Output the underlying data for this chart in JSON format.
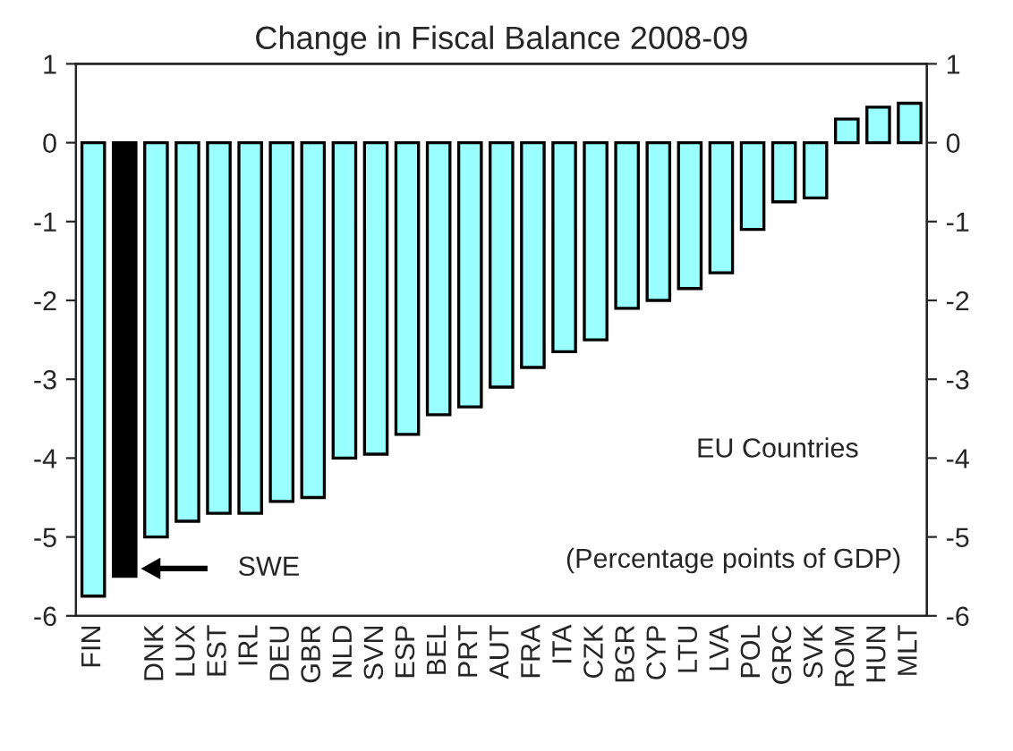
{
  "chart_data": {
    "type": "bar",
    "title": "Change in Fiscal Balance 2008-09",
    "categories": [
      "FIN",
      null,
      "DNK",
      "LUX",
      "EST",
      "IRL",
      "DEU",
      "GBR",
      "NLD",
      "SVN",
      "ESP",
      "BEL",
      "PRT",
      "AUT",
      "FRA",
      "ITA",
      "CZK",
      "BGR",
      "CYP",
      "LTU",
      "LVA",
      "POL",
      "GRC",
      "SVK",
      "ROM",
      "HUN",
      "MLT"
    ],
    "values": [
      -5.75,
      -5.5,
      -5.0,
      -4.8,
      -4.7,
      -4.7,
      -4.55,
      -4.5,
      -4.0,
      -3.95,
      -3.7,
      -3.45,
      -3.35,
      -3.1,
      -2.85,
      -2.65,
      -2.5,
      -2.1,
      -2.0,
      -1.85,
      -1.65,
      -1.1,
      -0.75,
      -0.7,
      0.3,
      0.45,
      0.5
    ],
    "colors": [
      "#99ffff",
      "#000000",
      "#99ffff",
      "#99ffff",
      "#99ffff",
      "#99ffff",
      "#99ffff",
      "#99ffff",
      "#99ffff",
      "#99ffff",
      "#99ffff",
      "#99ffff",
      "#99ffff",
      "#99ffff",
      "#99ffff",
      "#99ffff",
      "#99ffff",
      "#99ffff",
      "#99ffff",
      "#99ffff",
      "#99ffff",
      "#99ffff",
      "#99ffff",
      "#99ffff",
      "#99ffff",
      "#99ffff",
      "#99ffff"
    ],
    "ylim": [
      -6,
      1
    ],
    "yticks": [
      -6,
      -5,
      -4,
      -3,
      -2,
      -1,
      0,
      1
    ],
    "y2lim": [
      -6,
      1
    ],
    "y2ticks": [
      -6,
      -5,
      -4,
      -3,
      -2,
      -1,
      0,
      1
    ],
    "annotations": [
      "SWE",
      "EU Countries",
      "(Percentage points of GDP)"
    ],
    "grid": false,
    "legend": false
  }
}
